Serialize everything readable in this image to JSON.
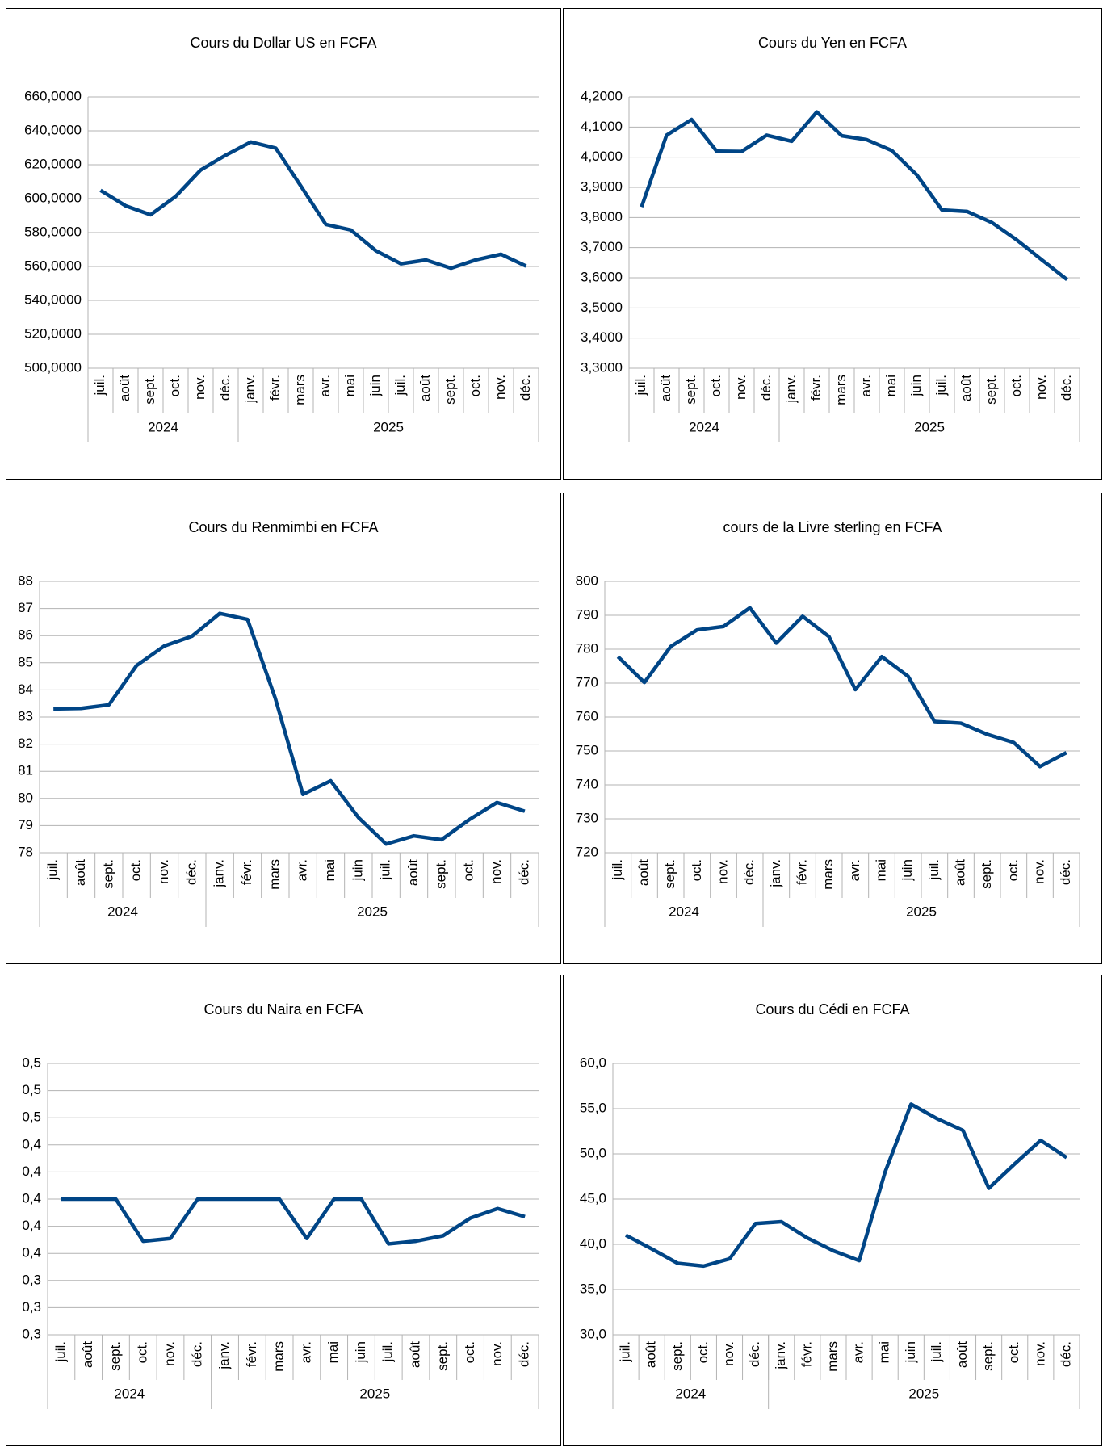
{
  "chart_data": [
    {
      "type": "line",
      "title": "Cours du Dollar US en FCFA",
      "categories": [
        "juil.",
        "août",
        "sept.",
        "oct.",
        "nov.",
        "déc.",
        "janv.",
        "févr.",
        "mars",
        "avr.",
        "mai",
        "juin",
        "juil.",
        "août",
        "sept.",
        "oct.",
        "nov.",
        "déc."
      ],
      "groups": [
        {
          "name": "2024",
          "size": 6
        },
        {
          "name": "2025",
          "size": 12
        }
      ],
      "series": [
        {
          "name": "Cours du Dollar US en FCFA",
          "color": "#004586",
          "values": [
            604.9,
            595.8,
            590.5,
            601.3,
            616.9,
            625.6,
            633.4,
            629.8,
            607.5,
            584.8,
            581.5,
            569.3,
            561.6,
            563.8,
            559.0,
            563.9,
            567.2,
            560.2
          ]
        }
      ],
      "ylim": [
        500,
        660
      ],
      "yticks": [
        {
          "value": 500,
          "label": "500,0000"
        },
        {
          "value": 520,
          "label": "520,0000"
        },
        {
          "value": 540,
          "label": "540,0000"
        },
        {
          "value": 560,
          "label": "560,0000"
        },
        {
          "value": 580,
          "label": "580,0000"
        },
        {
          "value": 600,
          "label": "600,0000"
        },
        {
          "value": 620,
          "label": "620,0000"
        },
        {
          "value": 640,
          "label": "640,0000"
        },
        {
          "value": 660,
          "label": "660,0000"
        }
      ],
      "grid": true
    },
    {
      "type": "line",
      "title": "Cours du Yen en FCFA",
      "categories": [
        "juil.",
        "août",
        "sept.",
        "oct.",
        "nov.",
        "déc.",
        "janv.",
        "févr.",
        "mars",
        "avr.",
        "mai",
        "juin",
        "juil.",
        "août",
        "sept.",
        "oct.",
        "nov.",
        "déc."
      ],
      "groups": [
        {
          "name": "2024",
          "size": 6
        },
        {
          "name": "2025",
          "size": 12
        }
      ],
      "series": [
        {
          "name": "Cours du Yen en FCFA",
          "color": "#004586",
          "values": [
            3.835,
            4.073,
            4.125,
            4.02,
            4.019,
            4.073,
            4.053,
            4.15,
            4.071,
            4.058,
            4.022,
            3.941,
            3.825,
            3.82,
            3.783,
            3.725,
            3.659,
            3.594
          ]
        }
      ],
      "ylim": [
        3.3,
        4.2
      ],
      "yticks": [
        {
          "value": 3.3,
          "label": "3,3000"
        },
        {
          "value": 3.4,
          "label": "3,4000"
        },
        {
          "value": 3.5,
          "label": "3,5000"
        },
        {
          "value": 3.6,
          "label": "3,6000"
        },
        {
          "value": 3.7,
          "label": "3,7000"
        },
        {
          "value": 3.8,
          "label": "3,8000"
        },
        {
          "value": 3.9,
          "label": "3,9000"
        },
        {
          "value": 4.0,
          "label": "4,0000"
        },
        {
          "value": 4.1,
          "label": "4,1000"
        },
        {
          "value": 4.2,
          "label": "4,2000"
        }
      ],
      "grid": true
    },
    {
      "type": "line",
      "title": "Cours du Renmimbi en FCFA",
      "categories": [
        "juil.",
        "août",
        "sept.",
        "oct.",
        "nov.",
        "déc.",
        "janv.",
        "févr.",
        "mars",
        "avr.",
        "mai",
        "juin",
        "juil.",
        "août",
        "sept.",
        "oct.",
        "nov.",
        "déc."
      ],
      "groups": [
        {
          "name": "2024",
          "size": 6
        },
        {
          "name": "2025",
          "size": 12
        }
      ],
      "series": [
        {
          "name": "Cours du Renmimbi en FCFA",
          "color": "#004586",
          "values": [
            83.3,
            83.32,
            83.45,
            84.9,
            85.62,
            85.98,
            86.82,
            86.6,
            83.7,
            80.15,
            80.65,
            79.3,
            78.32,
            78.62,
            78.48,
            79.22,
            79.85,
            79.53
          ]
        }
      ],
      "ylim": [
        78,
        88
      ],
      "yticks": [
        78,
        79,
        80,
        81,
        82,
        83,
        84,
        85,
        86,
        87,
        88
      ],
      "grid": true
    },
    {
      "type": "line",
      "title": "cours de la Livre sterling en FCFA",
      "categories": [
        "juil.",
        "août",
        "sept.",
        "oct.",
        "nov.",
        "déc.",
        "janv.",
        "févr.",
        "mars",
        "avr.",
        "mai",
        "juin",
        "juil.",
        "août",
        "sept.",
        "oct.",
        "nov.",
        "déc."
      ],
      "groups": [
        {
          "name": "2024",
          "size": 6
        },
        {
          "name": "2025",
          "size": 12
        }
      ],
      "series": [
        {
          "name": "cours de la Livre sterling en FCFA",
          "color": "#004586",
          "values": [
            777.8,
            770.2,
            780.8,
            785.7,
            786.7,
            792.2,
            781.8,
            789.7,
            783.7,
            768.1,
            777.8,
            772.0,
            758.7,
            758.2,
            754.9,
            752.5,
            745.4,
            749.5
          ]
        }
      ],
      "ylim": [
        720,
        800
      ],
      "yticks": [
        720,
        730,
        740,
        750,
        760,
        770,
        780,
        790,
        800
      ],
      "grid": true
    },
    {
      "type": "line",
      "title": "Cours du Naira en FCFA",
      "categories": [
        "juil.",
        "août",
        "sept.",
        "oct.",
        "nov.",
        "déc.",
        "janv.",
        "févr.",
        "mars",
        "avr.",
        "mai",
        "juin",
        "juil.",
        "août",
        "sept.",
        "oct.",
        "nov.",
        "déc."
      ],
      "groups": [
        {
          "name": "2024",
          "size": 6
        },
        {
          "name": "2025",
          "size": 12
        }
      ],
      "series": [
        {
          "name": "Cours du Naira en FCFA",
          "color": "#004586",
          "values": [
            0.4,
            0.4,
            0.4,
            0.369,
            0.371,
            0.4,
            0.4,
            0.4,
            0.4,
            0.371,
            0.4,
            0.4,
            0.367,
            0.369,
            0.373,
            0.386,
            0.393,
            0.387
          ]
        }
      ],
      "ylim": [
        0.3,
        0.5
      ],
      "yticks": [
        {
          "value": 0.3,
          "label": "0,3"
        },
        {
          "value": 0.32,
          "label": "0,3"
        },
        {
          "value": 0.34,
          "label": "0,3"
        },
        {
          "value": 0.36,
          "label": "0,4"
        },
        {
          "value": 0.38,
          "label": "0,4"
        },
        {
          "value": 0.4,
          "label": "0,4"
        },
        {
          "value": 0.42,
          "label": "0,4"
        },
        {
          "value": 0.44,
          "label": "0,4"
        },
        {
          "value": 0.46,
          "label": "0,5"
        },
        {
          "value": 0.48,
          "label": "0,5"
        },
        {
          "value": 0.5,
          "label": "0,5"
        }
      ],
      "grid": true
    },
    {
      "type": "line",
      "title": "Cours du Cédi en FCFA",
      "categories": [
        "juil.",
        "août",
        "sept.",
        "oct.",
        "nov.",
        "déc.",
        "janv.",
        "févr.",
        "mars",
        "avr.",
        "mai",
        "juin",
        "juil.",
        "août",
        "sept.",
        "oct.",
        "nov.",
        "déc."
      ],
      "groups": [
        {
          "name": "2024",
          "size": 6
        },
        {
          "name": "2025",
          "size": 12
        }
      ],
      "series": [
        {
          "name": "Cours du Cédi en FCFA",
          "color": "#004586",
          "values": [
            41.0,
            39.5,
            37.9,
            37.6,
            38.4,
            42.3,
            42.5,
            40.7,
            39.3,
            38.2,
            48.0,
            55.5,
            53.9,
            52.6,
            46.2,
            48.9,
            51.5,
            49.6
          ]
        }
      ],
      "ylim": [
        30,
        60
      ],
      "yticks": [
        {
          "value": 30,
          "label": "30,0"
        },
        {
          "value": 35,
          "label": "35,0"
        },
        {
          "value": 40,
          "label": "40,0"
        },
        {
          "value": 45,
          "label": "45,0"
        },
        {
          "value": 50,
          "label": "50,0"
        },
        {
          "value": 55,
          "label": "55,0"
        },
        {
          "value": 60,
          "label": "60,0"
        }
      ],
      "grid": true
    }
  ]
}
